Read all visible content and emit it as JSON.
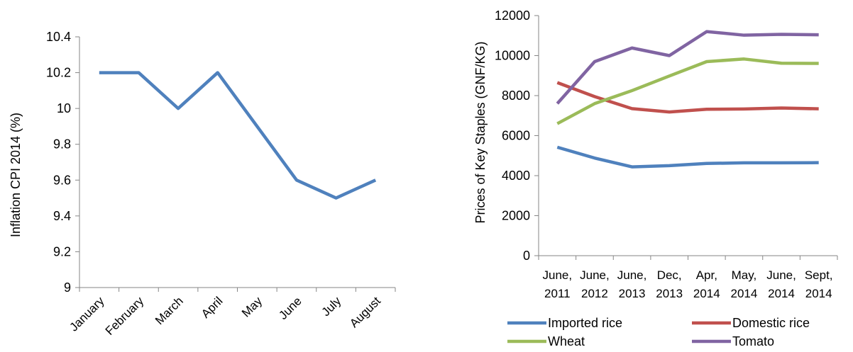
{
  "colors": {
    "axis": "#868686",
    "imported_rice": "#4F81BD",
    "domestic_rice": "#C0504D",
    "wheat": "#9BBB59",
    "tomato": "#8064A2"
  },
  "chart_data": [
    {
      "type": "line",
      "title": "",
      "xlabel": "",
      "ylabel": "Inflation CPI 2014 (%)",
      "ylim": [
        9,
        10.4
      ],
      "yticks": [
        "9",
        "9.2",
        "9.4",
        "9.6",
        "9.8",
        "10",
        "10.2",
        "10.4"
      ],
      "categories": [
        "January",
        "February",
        "March",
        "April",
        "May",
        "June",
        "July",
        "August"
      ],
      "series": [
        {
          "color": "#4F81BD",
          "values": [
            10.2,
            10.2,
            10.0,
            10.2,
            9.9,
            9.6,
            9.5,
            9.6
          ]
        }
      ],
      "grid": false,
      "legend": "none"
    },
    {
      "type": "line",
      "title": "",
      "xlabel": "",
      "ylabel": "Prices of Key Staples (GNF/KG)",
      "ylim": [
        0,
        12000
      ],
      "yticks": [
        "0",
        "2000",
        "4000",
        "6000",
        "8000",
        "10000",
        "12000"
      ],
      "categories": [
        {
          "line1": "June,",
          "line2": "2011"
        },
        {
          "line1": "June,",
          "line2": "2012"
        },
        {
          "line1": "June,",
          "line2": "2013"
        },
        {
          "line1": "Dec,",
          "line2": "2013"
        },
        {
          "line1": "Apr,",
          "line2": "2014"
        },
        {
          "line1": "May,",
          "line2": "2014"
        },
        {
          "line1": "June,",
          "line2": "2014"
        },
        {
          "line1": "Sept,",
          "line2": "2014"
        }
      ],
      "series": [
        {
          "name": "Imported rice",
          "color": "#4F81BD",
          "values": [
            5420,
            4880,
            4440,
            4500,
            4610,
            4640,
            4640,
            4650
          ]
        },
        {
          "name": "Domestic rice",
          "color": "#C0504D",
          "values": [
            8650,
            7950,
            7350,
            7180,
            7320,
            7330,
            7380,
            7340
          ]
        },
        {
          "name": "Wheat",
          "color": "#9BBB59",
          "values": [
            6600,
            7600,
            8250,
            8980,
            9700,
            9830,
            9620,
            9610
          ]
        },
        {
          "name": "Tomato",
          "color": "#8064A2",
          "values": [
            7600,
            9700,
            10380,
            10000,
            11200,
            11020,
            11060,
            11040
          ]
        }
      ],
      "grid": false,
      "legend": "bottom"
    }
  ]
}
